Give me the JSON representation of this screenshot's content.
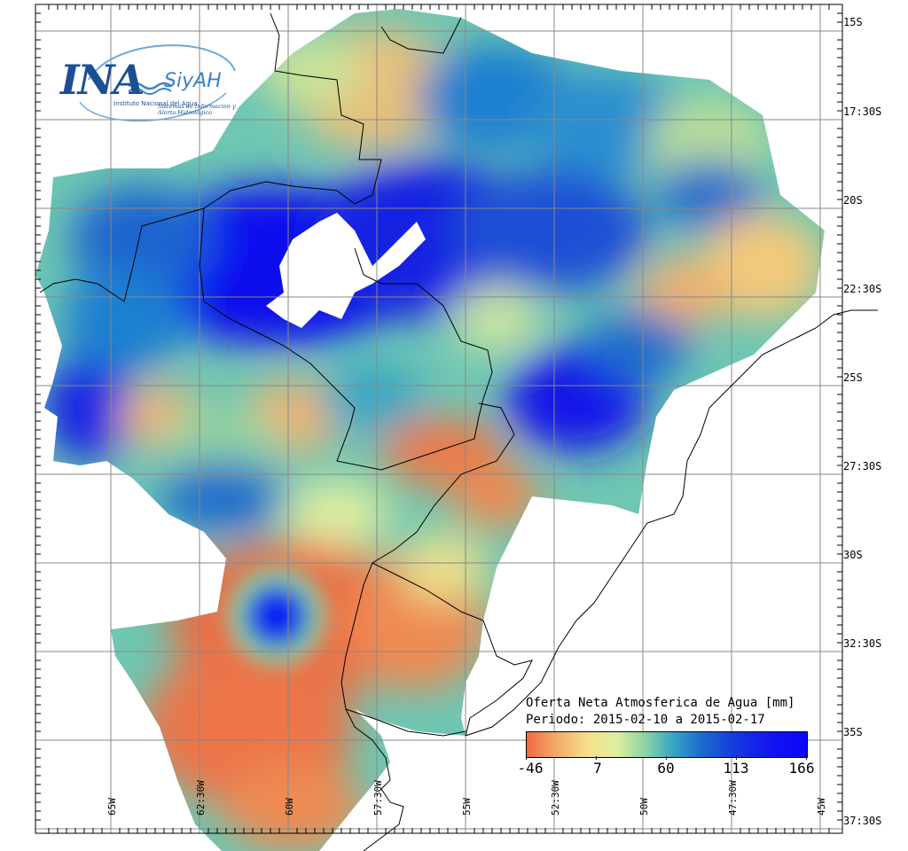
{
  "map": {
    "title": "Oferta Neta Atmosferica de Agua [mm]",
    "period": "Periodo: 2015-02-10 a 2015-02-17",
    "latitude_labels": [
      "15S",
      "17:30S",
      "20S",
      "22:30S",
      "25S",
      "27:30S",
      "30S",
      "32:30S",
      "35S",
      "37:30S"
    ],
    "longitude_labels": [
      "65W",
      "62:30W",
      "60W",
      "57:30W",
      "55W",
      "52:30W",
      "50W",
      "47:30W",
      "45W"
    ],
    "colorbar": {
      "min": -46,
      "max": 166,
      "tick_labels": [
        "-46",
        "7",
        "60",
        "113",
        "166"
      ],
      "colors": [
        "#ee6a44",
        "#f2a766",
        "#f7e08c",
        "#ddeea0",
        "#8fd3a2",
        "#39a7c3",
        "#1d6dcc",
        "#1636df",
        "#1212f2",
        "#0c06fb"
      ]
    }
  },
  "logo": {
    "ina": "INA",
    "siyah": "SiyAH",
    "subtitle": "Instituto Nacional del Agua",
    "subtitle2": "Sistemas de Información y Alerta Hidrológico"
  }
}
